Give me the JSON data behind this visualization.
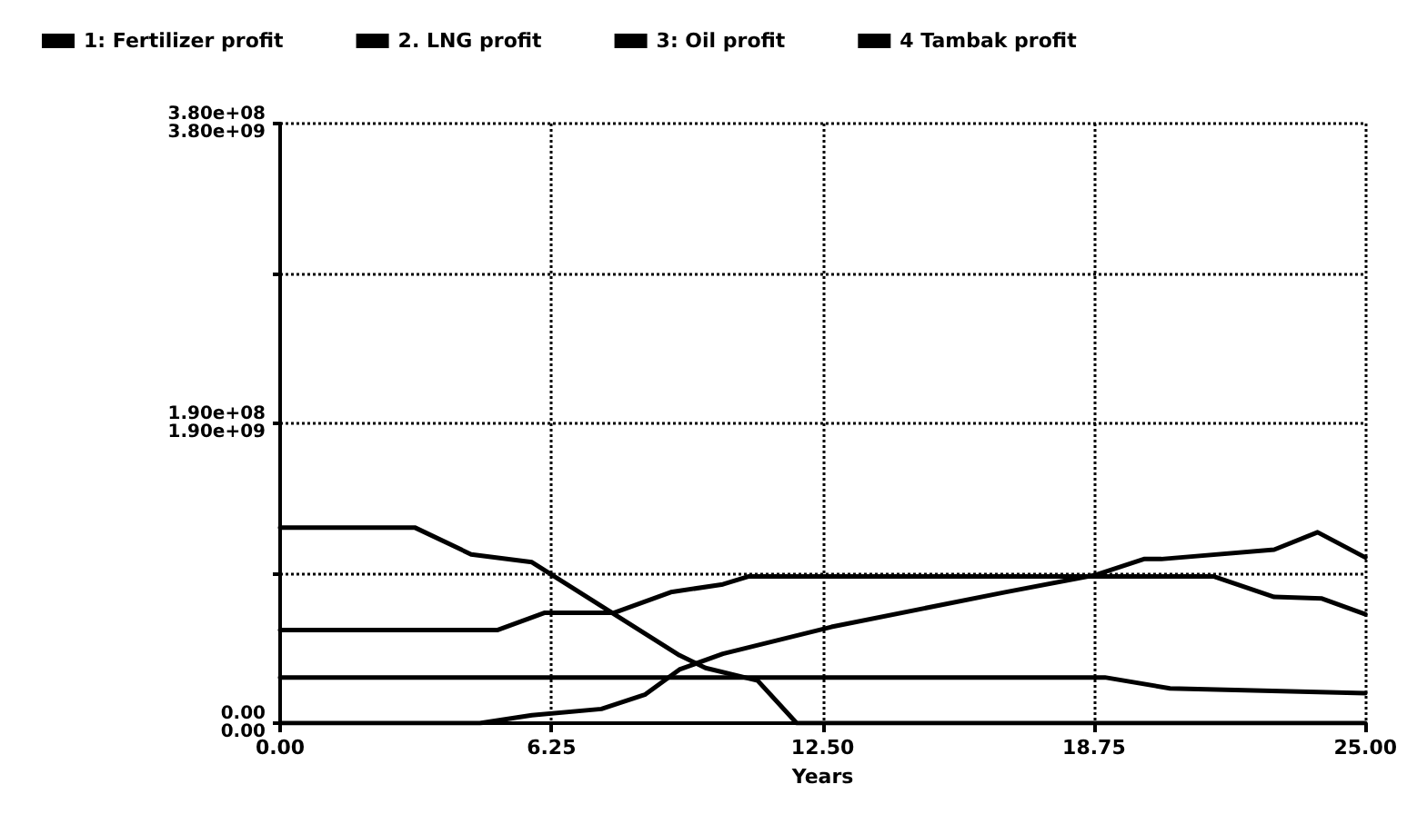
{
  "chart_data": {
    "type": "line",
    "xlabel": "Years",
    "legend": "top left",
    "grid": true,
    "line_style": "solid",
    "marker": "none",
    "xlim": [
      0,
      25
    ],
    "xticks": [
      {
        "value": 0,
        "label": "0.00"
      },
      {
        "value": 6.25,
        "label": "6.25"
      },
      {
        "value": 12.5,
        "label": "12.50"
      },
      {
        "value": 18.75,
        "label": "18.75"
      },
      {
        "value": 25,
        "label": "25.00"
      }
    ],
    "ylim": [
      0,
      380000000
    ],
    "yticks": [
      {
        "value": 0,
        "label": "0.00"
      },
      {
        "value": 95000000,
        "label": null
      },
      {
        "value": 190000000,
        "label": "1.90e+08"
      },
      {
        "value": 285000000,
        "label": null
      },
      {
        "value": 380000000,
        "label": "3.80e+08"
      }
    ],
    "y2lim": [
      0,
      3800000000
    ],
    "y2ticks": [
      {
        "value": 0,
        "label": "0.00"
      },
      {
        "value": 950000000,
        "label": null
      },
      {
        "value": 1900000000,
        "label": "1.90e+09"
      },
      {
        "value": 2850000000,
        "label": null
      },
      {
        "value": 3800000000,
        "label": "3.80e+09"
      }
    ],
    "series": [
      {
        "name": "1: Fertilizer profit",
        "color": "#000000",
        "x": [
          0,
          19,
          20.5,
          25
        ],
        "values": [
          29000000,
          29000000,
          22000000,
          19000000
        ]
      },
      {
        "name": "2. LNG profit",
        "color": "#000000",
        "axis": "y2",
        "x": [
          0,
          5,
          6.1,
          7.7,
          9,
          10.2,
          10.8,
          21.5,
          22.9,
          24,
          25
        ],
        "values": [
          590000000,
          590000000,
          700000000,
          700000000,
          830000000,
          880000000,
          930000000,
          930000000,
          800000000,
          790000000,
          690000000
        ]
      },
      {
        "name": "3: Oil profit",
        "color": "#000000",
        "axis": "y2",
        "x": [
          0,
          3.1,
          4.4,
          5.8,
          9.2,
          9.8,
          11,
          11.9,
          25
        ],
        "values": [
          1240000000,
          1240000000,
          1070000000,
          1020000000,
          430000000,
          350000000,
          270000000,
          0,
          0
        ]
      },
      {
        "name": "4 Tambak profit",
        "color": "#000000",
        "axis": "y2",
        "x": [
          0,
          4.6,
          5.8,
          7.4,
          8.4,
          9.2,
          10.2,
          12.7,
          16.7,
          18.8,
          19.9,
          20.3,
          22.9,
          23.9,
          25
        ],
        "values": [
          0,
          0,
          50000000,
          90000000,
          180000000,
          340000000,
          440000000,
          610000000,
          830000000,
          940000000,
          1040000000,
          1040000000,
          1100000000,
          1210000000,
          1050000000
        ]
      }
    ]
  }
}
